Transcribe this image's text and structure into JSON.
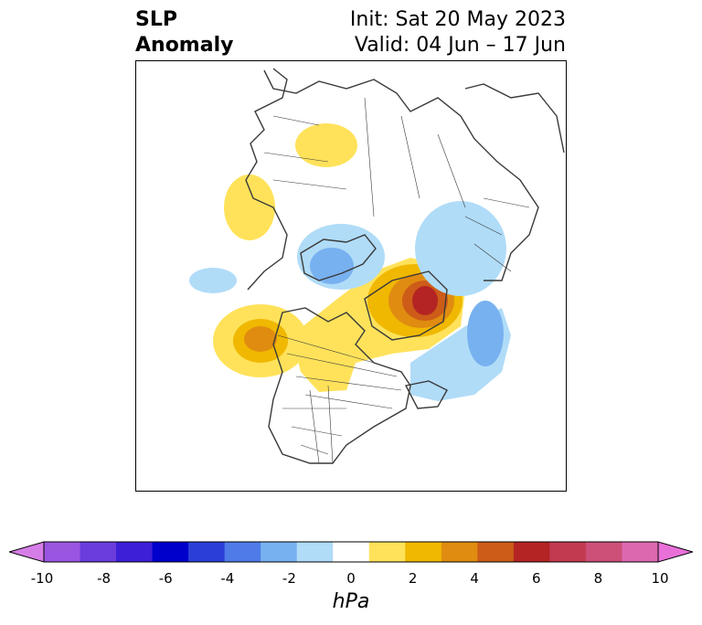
{
  "title": {
    "left_line1": "SLP",
    "left_line2": "Anomaly",
    "right_line1": "Init: Sat 20 May 2023",
    "right_line2": "Valid: 04 Jun – 17 Jun"
  },
  "colorbar": {
    "units": "hPa",
    "ticks": [
      "-10",
      "-8",
      "-6",
      "-4",
      "-2",
      "0",
      "2",
      "4",
      "6",
      "8",
      "10"
    ],
    "colors": [
      "#d67ee8",
      "#9a56e0",
      "#6a3ddc",
      "#3c1fd6",
      "#0000cc",
      "#2a3fd8",
      "#4f7be8",
      "#78b1f0",
      "#b0dcf8",
      "#ffffff",
      "#ffe25a",
      "#f0b800",
      "#e08c10",
      "#cc5c18",
      "#b42424",
      "#c23a50",
      "#cc5078",
      "#dc68b0",
      "#e870d8"
    ]
  },
  "map": {
    "projection": "north-polar",
    "region": "Northern Hemisphere (North America focus)"
  }
}
